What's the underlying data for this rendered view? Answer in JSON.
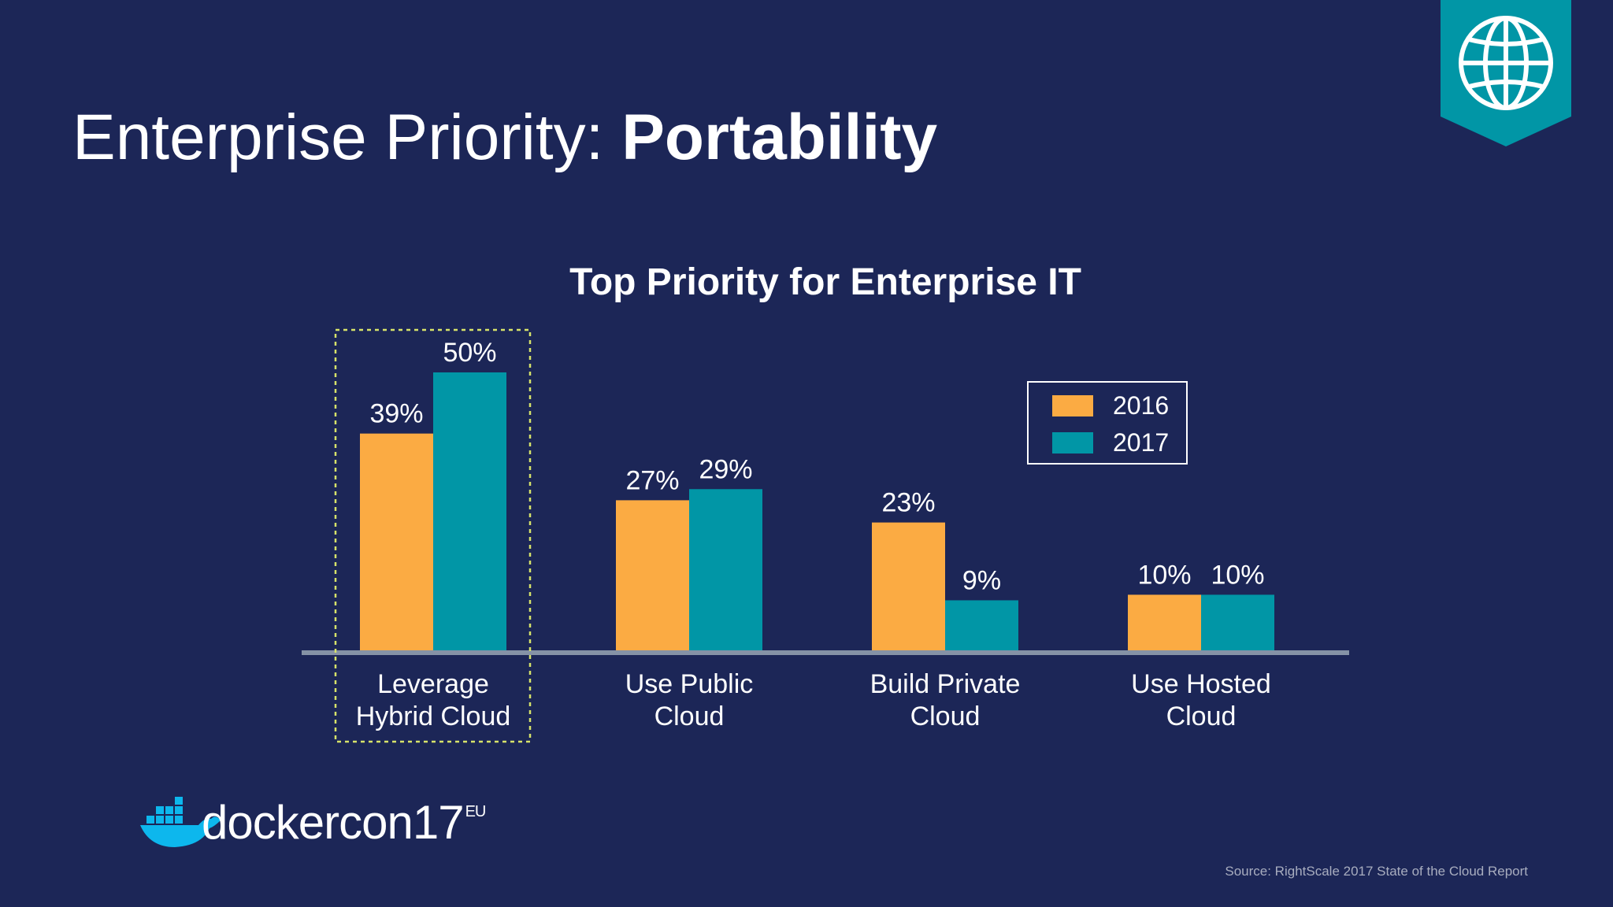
{
  "slide": {
    "title_prefix": "Enterprise Priority: ",
    "title_emphasis": "Portability",
    "source": "Source: RightScale 2017 State of the Cloud Report",
    "logo": {
      "text": "dockercon",
      "number": "17",
      "suffix": "EU"
    }
  },
  "chart_data": {
    "type": "bar",
    "title": "Top Priority for Enterprise IT",
    "categories": [
      "Leverage Hybrid Cloud",
      "Use Public Cloud",
      "Build Private Cloud",
      "Use Hosted Cloud"
    ],
    "category_lines": [
      [
        "Leverage",
        "Hybrid Cloud"
      ],
      [
        "Use Public",
        "Cloud"
      ],
      [
        "Build Private",
        "Cloud"
      ],
      [
        "Use Hosted",
        "Cloud"
      ]
    ],
    "series": [
      {
        "name": "2016",
        "values": [
          39,
          27,
          23,
          10
        ],
        "labels": [
          "39%",
          "27%",
          "23%",
          "10%"
        ],
        "color": "#fbab43"
      },
      {
        "name": "2017",
        "values": [
          50,
          29,
          9,
          10
        ],
        "labels": [
          "50%",
          "29%",
          "9%",
          "10%"
        ],
        "color": "#0196a6"
      }
    ],
    "ylim": [
      0,
      50
    ],
    "highlighted_category": "Leverage Hybrid Cloud",
    "legend_position": "top-right",
    "grid": false
  },
  "colors": {
    "background": "#1c2657",
    "badge": "#0196a6",
    "axis": "#8592a6",
    "highlight_border": "#d7e36a"
  },
  "icons": {
    "badge": "globe-icon",
    "logo": "docker-whale-icon"
  }
}
